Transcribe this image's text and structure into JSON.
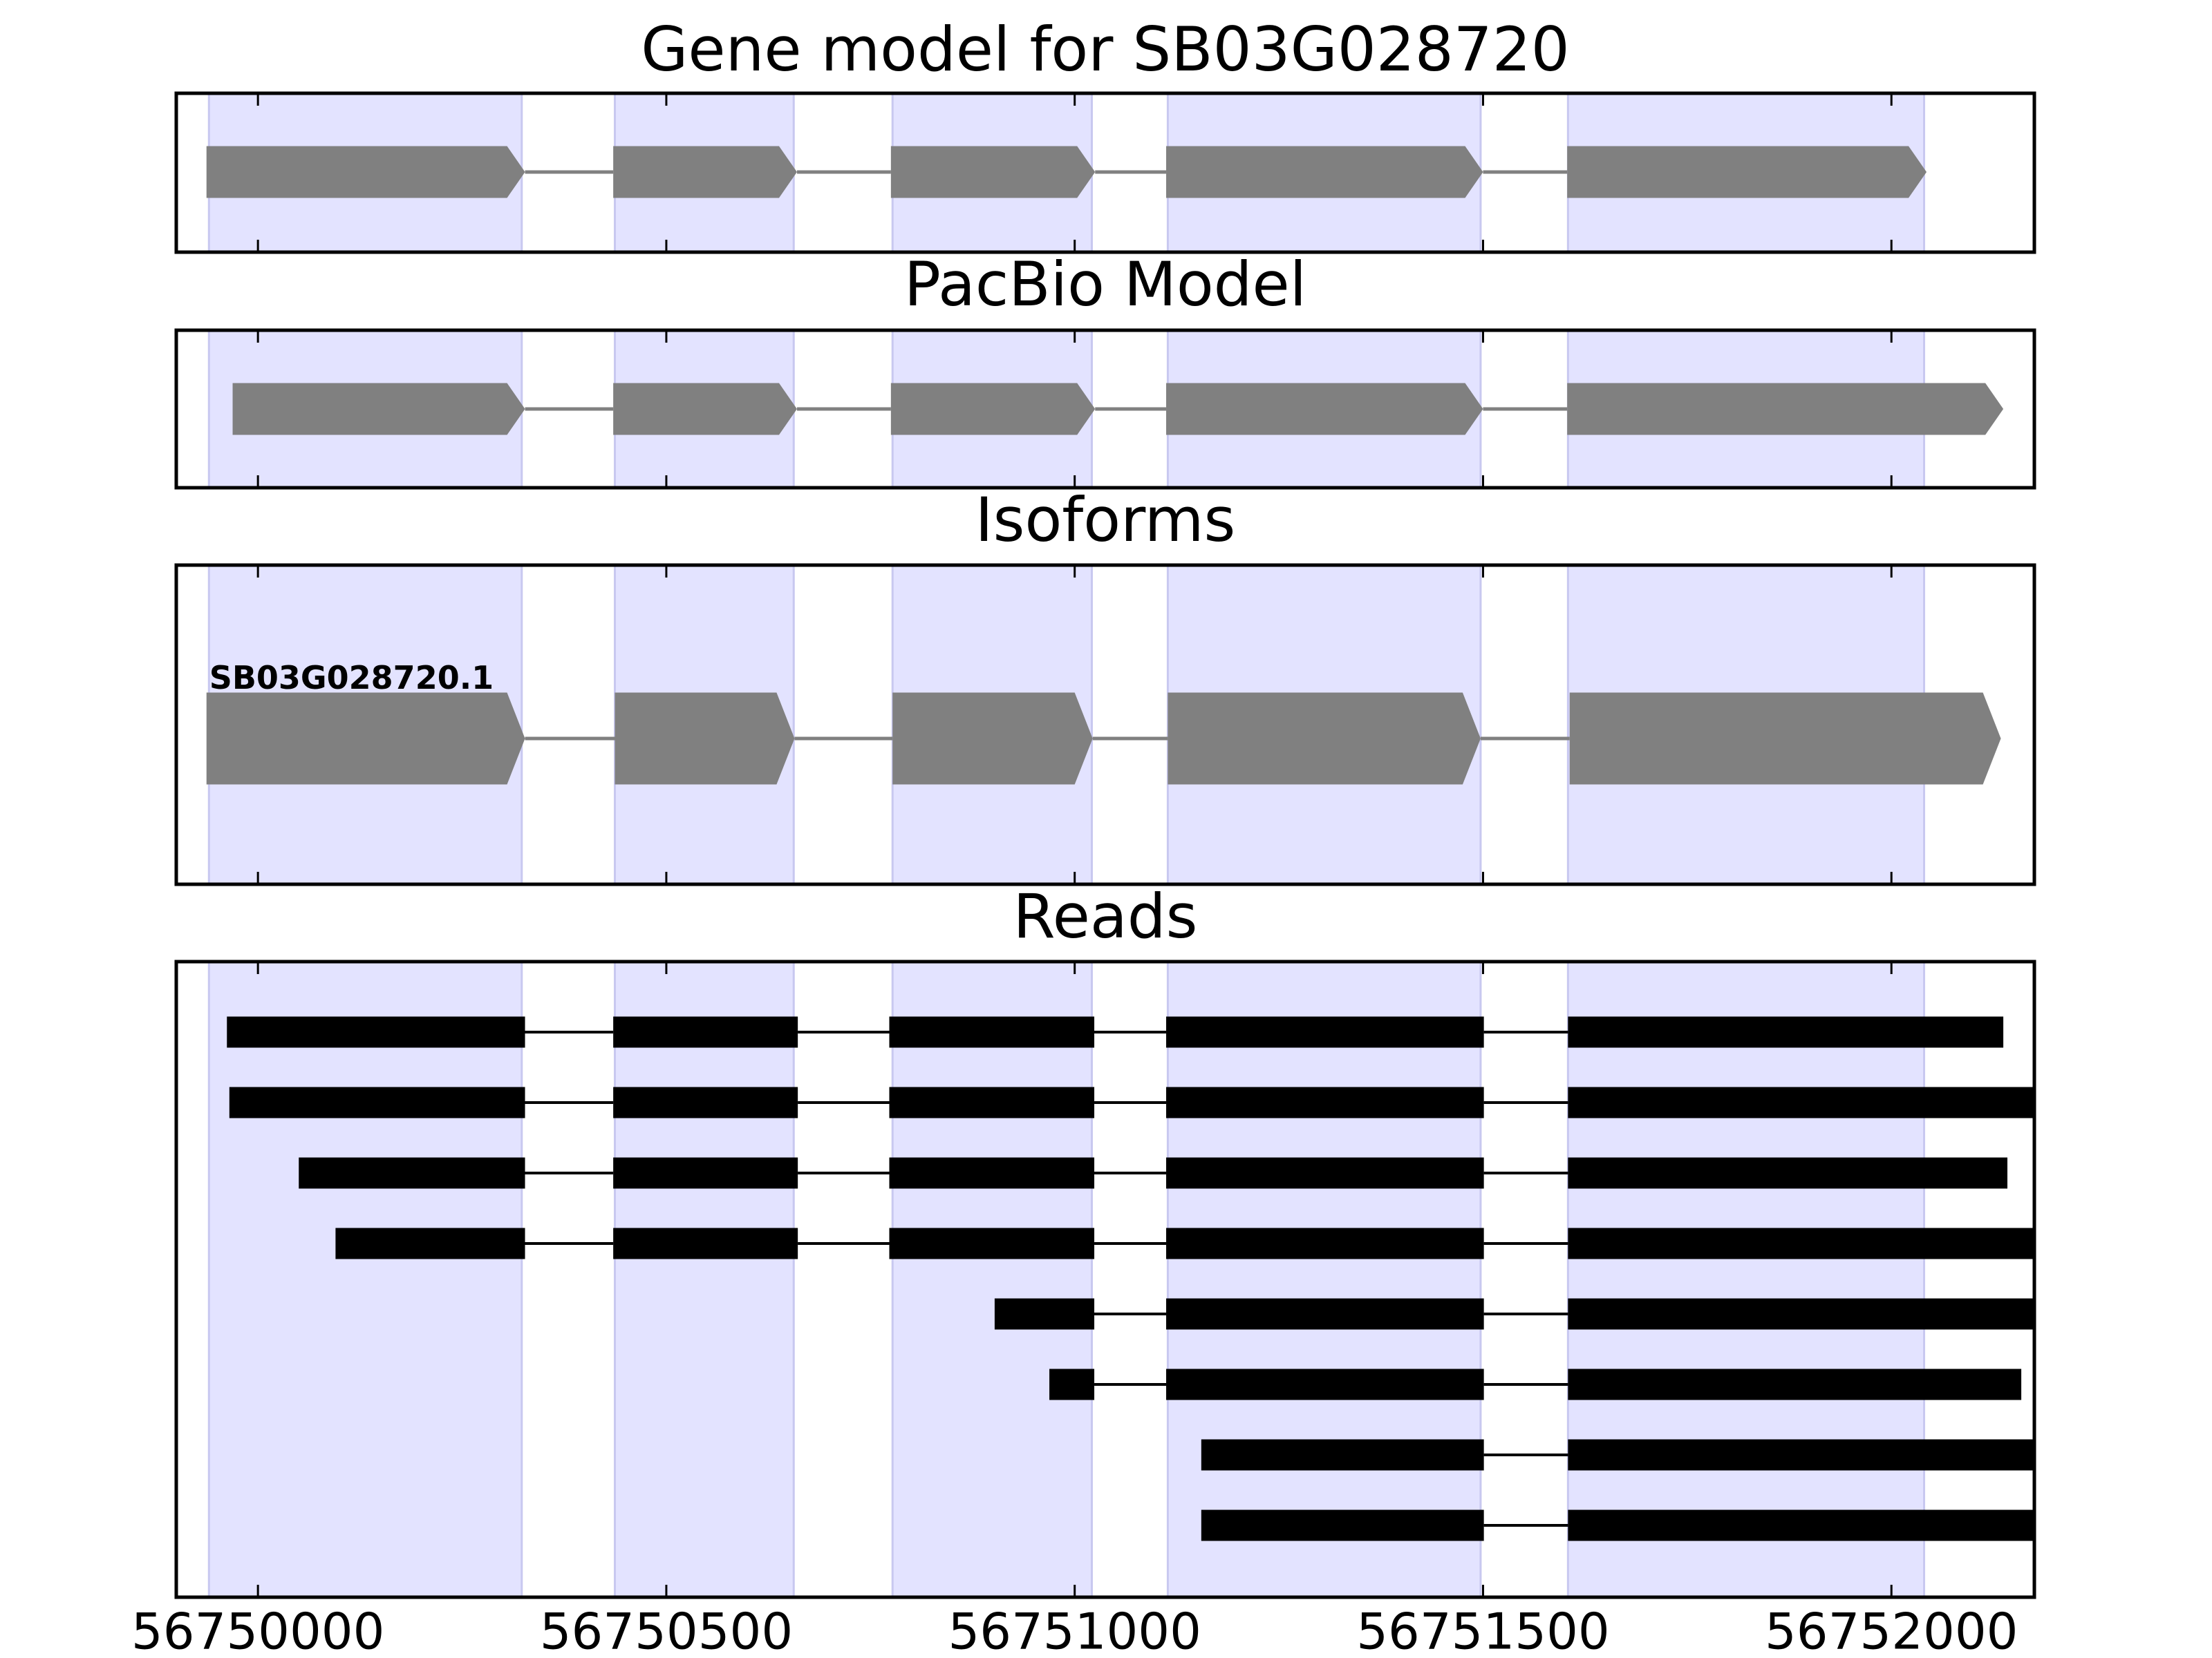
{
  "chart_data": [
    {
      "type": "gene",
      "title": "Gene model for SB03G028720",
      "color": "#808080",
      "xlim": [
        56749900,
        56752175
      ],
      "xticks": [
        56750000,
        56750500,
        56751000,
        56751500,
        56752000
      ],
      "regions": [
        [
          56749940,
          56750323
        ],
        [
          56750437,
          56750656
        ],
        [
          56750777,
          56751021
        ],
        [
          56751114,
          56751497
        ],
        [
          56751604,
          56752040
        ]
      ],
      "features": [
        {
          "exons": [
            [
              56749937,
              56750327
            ],
            [
              56750435,
              56750660
            ],
            [
              56750775,
              56751025
            ],
            [
              56751112,
              56751500
            ],
            [
              56751603,
              56752043
            ]
          ]
        }
      ]
    },
    {
      "type": "gene",
      "title": "PacBio Model",
      "color": "#808080",
      "xlim": [
        56749900,
        56752175
      ],
      "xticks": [
        56750000,
        56750500,
        56751000,
        56751500,
        56752000
      ],
      "regions": [
        [
          56749940,
          56750323
        ],
        [
          56750437,
          56750656
        ],
        [
          56750777,
          56751021
        ],
        [
          56751114,
          56751497
        ],
        [
          56751604,
          56752040
        ]
      ],
      "features": [
        {
          "exons": [
            [
              56749969,
              56750327
            ],
            [
              56750435,
              56750660
            ],
            [
              56750775,
              56751025
            ],
            [
              56751112,
              56751500
            ],
            [
              56751603,
              56752137
            ]
          ]
        }
      ]
    },
    {
      "type": "gene",
      "title": "Isoforms",
      "color": "#808080",
      "xlim": [
        56749900,
        56752175
      ],
      "xticks": [
        56750000,
        56750500,
        56751000,
        56751500,
        56752000
      ],
      "regions": [
        [
          56749940,
          56750323
        ],
        [
          56750437,
          56750656
        ],
        [
          56750777,
          56751021
        ],
        [
          56751114,
          56751497
        ],
        [
          56751604,
          56752040
        ]
      ],
      "features": [
        {
          "name": "SB03G028720.1",
          "exons": [
            [
              56749937,
              56750327
            ],
            [
              56750437,
              56750657
            ],
            [
              56750777,
              56751022
            ],
            [
              56751114,
              56751497
            ],
            [
              56751606,
              56752134
            ]
          ]
        }
      ]
    },
    {
      "type": "reads",
      "title": "Reads",
      "color": "#000000",
      "xlim": [
        56749900,
        56752175
      ],
      "xticks": [
        56750000,
        56750500,
        56751000,
        56751500,
        56752000
      ],
      "regions": [
        [
          56749940,
          56750323
        ],
        [
          56750437,
          56750656
        ],
        [
          56750777,
          56751021
        ],
        [
          56751114,
          56751497
        ],
        [
          56751604,
          56752040
        ]
      ],
      "features": [
        {
          "exons": [
            [
              56749962,
              56750327
            ],
            [
              56750435,
              56750661
            ],
            [
              56750773,
              56751024
            ],
            [
              56751112,
              56751501
            ],
            [
              56751604,
              56752137
            ]
          ]
        },
        {
          "exons": [
            [
              56749965,
              56750327
            ],
            [
              56750435,
              56750661
            ],
            [
              56750773,
              56751024
            ],
            [
              56751112,
              56751501
            ],
            [
              56751604,
              56752200
            ]
          ]
        },
        {
          "exons": [
            [
              56750050,
              56750327
            ],
            [
              56750435,
              56750661
            ],
            [
              56750773,
              56751024
            ],
            [
              56751112,
              56751501
            ],
            [
              56751604,
              56752142
            ]
          ]
        },
        {
          "exons": [
            [
              56750095,
              56750327
            ],
            [
              56750435,
              56750661
            ],
            [
              56750773,
              56751024
            ],
            [
              56751112,
              56751501
            ],
            [
              56751604,
              56752200
            ]
          ]
        },
        {
          "exons": [
            [
              56750902,
              56751024
            ],
            [
              56751112,
              56751501
            ],
            [
              56751604,
              56752200
            ]
          ]
        },
        {
          "exons": [
            [
              56750969,
              56751024
            ],
            [
              56751112,
              56751501
            ],
            [
              56751604,
              56752159
            ]
          ]
        },
        {
          "exons": [
            [
              56751155,
              56751501
            ],
            [
              56751604,
              56752200
            ]
          ]
        },
        {
          "exons": [
            [
              56751155,
              56751501
            ],
            [
              56751604,
              56752200
            ]
          ]
        }
      ]
    }
  ]
}
